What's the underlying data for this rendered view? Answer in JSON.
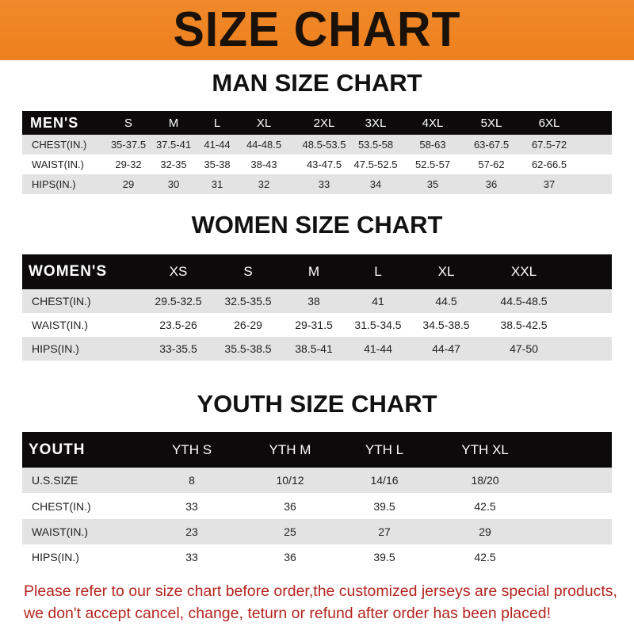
{
  "banner": {
    "title": "SIZE CHART",
    "color": "#ee7f1d"
  },
  "men": {
    "title": "MAN SIZE CHART",
    "header": [
      "MEN'S",
      "S",
      "M",
      "L",
      "XL",
      "2XL",
      "3XL",
      "4XL",
      "5XL",
      "6XL"
    ],
    "rows": [
      [
        "CHEST(IN.)",
        "35-37.5",
        "37.5-41",
        "41-44",
        "44-48.5",
        "48.5-53.5",
        "53.5-58",
        "58-63",
        "63-67.5",
        "67.5-72"
      ],
      [
        "WAIST(IN.)",
        "29-32",
        "32-35",
        "35-38",
        "38-43",
        "43-47.5",
        "47.5-52.5",
        "52.5-57",
        "57-62",
        "62-66.5"
      ],
      [
        "HIPS(IN.)",
        "29",
        "30",
        "31",
        "32",
        "33",
        "34",
        "35",
        "36",
        "37"
      ]
    ]
  },
  "women": {
    "title": "WOMEN SIZE CHART",
    "header": [
      "WOMEN'S",
      "XS",
      "S",
      "M",
      "L",
      "XL",
      "XXL"
    ],
    "rows": [
      [
        "CHEST(IN.)",
        "29.5-32.5",
        "32.5-35.5",
        "38",
        "41",
        "44.5",
        "44.5-48.5"
      ],
      [
        "WAIST(IN.)",
        "23.5-26",
        "26-29",
        "29-31.5",
        "31.5-34.5",
        "34.5-38.5",
        "38.5-42.5"
      ],
      [
        "HIPS(IN.)",
        "33-35.5",
        "35.5-38.5",
        "38.5-41",
        "41-44",
        "44-47",
        "47-50"
      ]
    ]
  },
  "youth": {
    "title": "YOUTH SIZE CHART",
    "header": [
      "YOUTH",
      "YTH S",
      "YTH M",
      "YTH L",
      "YTH XL"
    ],
    "rows": [
      [
        "U.S.SIZE",
        "8",
        "10/12",
        "14/16",
        "18/20"
      ],
      [
        "CHEST(IN.)",
        "33",
        "36",
        "39.5",
        "42.5"
      ],
      [
        "WAIST(IN.)",
        "23",
        "25",
        "27",
        "29"
      ],
      [
        "HIPS(IN.)",
        "33",
        "36",
        "39.5",
        "42.5"
      ]
    ]
  },
  "notice": {
    "line1": "Please refer to our size chart before order,the customized jerseys are special products,",
    "line2": "we don't accept cancel, change, teturn or refund after order has been placed!",
    "color": "#b4251f"
  }
}
